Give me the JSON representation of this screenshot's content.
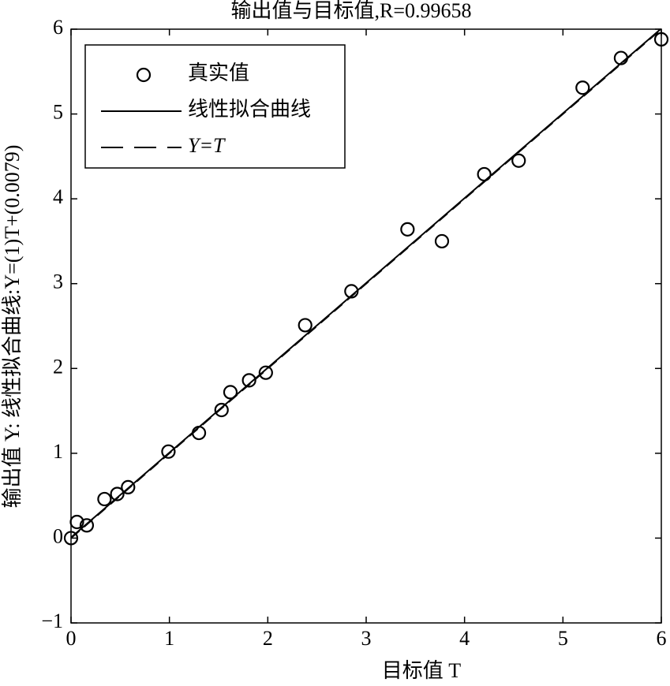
{
  "chart_data": {
    "type": "scatter",
    "title": "输出值与目标值,R=0.99658",
    "x_label": "目标值 T",
    "y_label": "输出值 Y: 线性拟合曲线:Y=(1)T+(0.0079)",
    "xlim": [
      0,
      6
    ],
    "ylim": [
      -1,
      6
    ],
    "xticks": [
      0,
      1,
      2,
      3,
      4,
      5,
      6
    ],
    "yticks": [
      {
        "value": -1,
        "label": "−1"
      },
      0,
      1,
      2,
      3,
      4,
      5,
      6
    ],
    "legend": "upper left",
    "series": [
      {
        "name": "真实值",
        "style": "marker",
        "color": "#000000",
        "x": [
          0,
          0.06,
          0.16,
          0.34,
          0.47,
          0.58,
          0.99,
          1.3,
          1.53,
          1.62,
          1.81,
          1.98,
          2.38,
          2.85,
          3.42,
          3.77,
          4.2,
          4.55,
          5.2,
          5.59,
          6.0
        ],
        "values": [
          0,
          0.19,
          0.15,
          0.46,
          0.52,
          0.6,
          1.02,
          1.24,
          1.51,
          1.72,
          1.86,
          1.95,
          2.51,
          2.91,
          3.64,
          3.5,
          4.29,
          4.45,
          5.31,
          5.66,
          5.88
        ]
      },
      {
        "name": "线性拟合曲线",
        "style": "solid",
        "color": "#000000",
        "x": [
          0,
          6
        ],
        "values": [
          0.0079,
          6.0079
        ]
      },
      {
        "name": "Y=T",
        "style": "dashed",
        "color": "#000000",
        "x": [
          0,
          6
        ],
        "values": [
          0,
          6
        ]
      }
    ]
  }
}
